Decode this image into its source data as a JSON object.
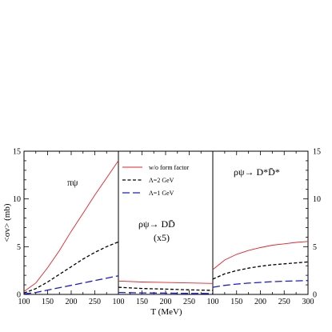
{
  "chart_data": [
    {
      "type": "line",
      "panel": "left",
      "label": "πψ",
      "x": [
        100,
        125,
        150,
        175,
        200,
        225,
        250,
        275,
        300
      ],
      "series": [
        {
          "name": "w/o form factor",
          "color": "#e8202a",
          "dash": "solid",
          "values": [
            0.3,
            1.2,
            2.8,
            4.6,
            6.6,
            8.5,
            10.4,
            12.2,
            14.0
          ]
        },
        {
          "name": "Λ=2 GeV",
          "color": "#000000",
          "dash": "short",
          "values": [
            0.15,
            0.6,
            1.3,
            2.1,
            2.9,
            3.7,
            4.4,
            5.0,
            5.5
          ]
        },
        {
          "name": "Λ=1 GeV",
          "color": "#1a1ad0",
          "dash": "long",
          "values": [
            0.05,
            0.2,
            0.45,
            0.7,
            0.95,
            1.2,
            1.45,
            1.7,
            1.95
          ]
        }
      ]
    },
    {
      "type": "line",
      "panel": "middle",
      "label": "ρψ→ DD̄",
      "scale_note": "(x5)",
      "x": [
        100,
        150,
        200,
        250,
        300
      ],
      "series": [
        {
          "name": "w/o form factor",
          "color": "#e8202a",
          "dash": "solid",
          "values": [
            1.4,
            1.3,
            1.25,
            1.2,
            1.15
          ]
        },
        {
          "name": "Λ=2 GeV",
          "color": "#000000",
          "dash": "short",
          "values": [
            0.75,
            0.62,
            0.55,
            0.48,
            0.42
          ]
        },
        {
          "name": "Λ=1 GeV",
          "color": "#1a1ad0",
          "dash": "long",
          "values": [
            0.2,
            0.16,
            0.13,
            0.11,
            0.09
          ]
        }
      ]
    },
    {
      "type": "line",
      "panel": "right",
      "label": "ρψ→ D*D̄*",
      "x": [
        100,
        125,
        150,
        175,
        200,
        225,
        250,
        275,
        300
      ],
      "series": [
        {
          "name": "w/o form factor",
          "color": "#e8202a",
          "dash": "solid",
          "values": [
            2.6,
            3.6,
            4.2,
            4.6,
            4.9,
            5.15,
            5.3,
            5.45,
            5.55
          ]
        },
        {
          "name": "Λ=2 GeV",
          "color": "#000000",
          "dash": "short",
          "values": [
            1.6,
            2.15,
            2.5,
            2.75,
            2.95,
            3.1,
            3.2,
            3.3,
            3.4
          ]
        },
        {
          "name": "Λ=1 GeV",
          "color": "#1a1ad0",
          "dash": "long",
          "values": [
            0.75,
            0.95,
            1.08,
            1.18,
            1.26,
            1.33,
            1.38,
            1.42,
            1.45
          ]
        }
      ]
    }
  ],
  "axes": {
    "xlabel": "T (MeV)",
    "ylabel": "<σv> (mb)",
    "xlim": [
      100,
      300
    ],
    "ylim": [
      0,
      15
    ],
    "xticks": [
      100,
      150,
      200,
      250,
      300
    ],
    "xtick_labels_shown": [
      "100",
      "150",
      "200",
      "250",
      "100",
      "150",
      "200",
      "250",
      "100",
      "150",
      "200",
      "250",
      "300"
    ],
    "yticks": [
      0,
      5,
      10,
      15
    ]
  },
  "legend": {
    "placement": "top of middle panel",
    "entries": [
      "w/o form factor",
      "Λ=2 GeV",
      "Λ=1 GeV"
    ]
  }
}
